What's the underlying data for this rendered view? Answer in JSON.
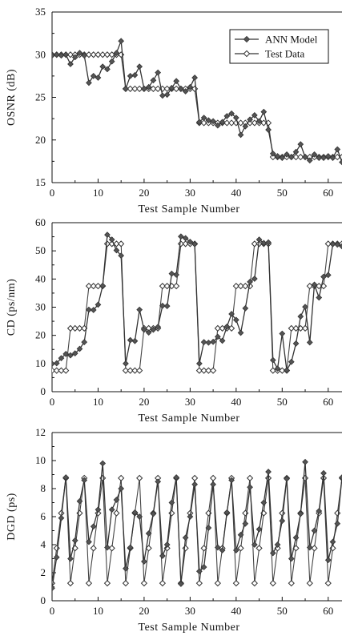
{
  "chart_data": [
    {
      "type": "line",
      "xlabel": "Test Sample Number",
      "ylabel": "OSNR (dB)",
      "xlim": [
        0,
        63
      ],
      "ylim": [
        15,
        35
      ],
      "xticks": [
        0,
        10,
        20,
        30,
        40,
        50,
        60
      ],
      "yticks": [
        15,
        20,
        25,
        30,
        35
      ],
      "legend": {
        "placement": "top-right",
        "entries": [
          "ANN Model",
          "Test Data"
        ]
      },
      "series": [
        {
          "name": "ANN Model",
          "marker": "diamond-filled",
          "x": [
            0,
            1,
            2,
            3,
            4,
            5,
            6,
            7,
            8,
            9,
            10,
            11,
            12,
            13,
            14,
            15,
            16,
            17,
            18,
            19,
            20,
            21,
            22,
            23,
            24,
            25,
            26,
            27,
            28,
            29,
            30,
            31,
            32,
            33,
            34,
            35,
            36,
            37,
            38,
            39,
            40,
            41,
            42,
            43,
            44,
            45,
            46,
            47,
            48,
            49,
            50,
            51,
            52,
            53,
            54,
            55,
            56,
            57,
            58,
            59,
            60,
            61,
            62,
            63
          ],
          "values": [
            29.9,
            30.0,
            29.9,
            30.0,
            28.9,
            29.7,
            30.2,
            29.9,
            26.7,
            27.5,
            27.3,
            28.6,
            28.3,
            29.2,
            30.2,
            31.6,
            26.0,
            27.5,
            27.6,
            28.6,
            26.0,
            26.2,
            27.0,
            27.9,
            25.2,
            25.3,
            26.1,
            26.9,
            26.0,
            25.7,
            26.2,
            27.3,
            22.1,
            22.6,
            22.3,
            22.2,
            21.7,
            22.1,
            22.8,
            23.1,
            22.6,
            20.6,
            21.6,
            22.4,
            22.9,
            22.2,
            23.3,
            21.2,
            18.4,
            18.1,
            17.9,
            18.3,
            18.0,
            18.6,
            19.5,
            18.0,
            17.6,
            18.3,
            17.9,
            17.9,
            18.1,
            17.9,
            18.9,
            17.4
          ]
        },
        {
          "name": "Test Data",
          "marker": "diamond-open",
          "x": [
            0,
            1,
            2,
            3,
            4,
            5,
            6,
            7,
            8,
            9,
            10,
            11,
            12,
            13,
            14,
            15,
            16,
            17,
            18,
            19,
            20,
            21,
            22,
            23,
            24,
            25,
            26,
            27,
            28,
            29,
            30,
            31,
            32,
            33,
            34,
            35,
            36,
            37,
            38,
            39,
            40,
            41,
            42,
            43,
            44,
            45,
            46,
            47,
            48,
            49,
            50,
            51,
            52,
            53,
            54,
            55,
            56,
            57,
            58,
            59,
            60,
            61,
            62,
            63
          ],
          "values": [
            30,
            30,
            30,
            30,
            30,
            30,
            30,
            30,
            30,
            30,
            30,
            30,
            30,
            30,
            30,
            30,
            26,
            26,
            26,
            26,
            26,
            26,
            26,
            26,
            26,
            26,
            26,
            26,
            26,
            26,
            26,
            26,
            22,
            22,
            22,
            22,
            22,
            22,
            22,
            22,
            22,
            22,
            22,
            22,
            22,
            22,
            22,
            22,
            18,
            18,
            18,
            18,
            18,
            18,
            18,
            18,
            18,
            18,
            18,
            18,
            18,
            18,
            18,
            18
          ]
        }
      ]
    },
    {
      "type": "line",
      "xlabel": "Test Sample Number",
      "ylabel": "CD (ps/nm)",
      "xlim": [
        0,
        63
      ],
      "ylim": [
        0,
        60
      ],
      "xticks": [
        0,
        10,
        20,
        30,
        40,
        50,
        60
      ],
      "yticks": [
        0,
        10,
        20,
        30,
        40,
        50,
        60
      ],
      "series": [
        {
          "name": "ANN Model",
          "marker": "diamond-filled",
          "x": [
            0,
            1,
            2,
            3,
            4,
            5,
            6,
            7,
            8,
            9,
            10,
            11,
            12,
            13,
            14,
            15,
            16,
            17,
            18,
            19,
            20,
            21,
            22,
            23,
            24,
            25,
            26,
            27,
            28,
            29,
            30,
            31,
            32,
            33,
            34,
            35,
            36,
            37,
            38,
            39,
            40,
            41,
            42,
            43,
            44,
            45,
            46,
            47,
            48,
            49,
            50,
            51,
            52,
            53,
            54,
            55,
            56,
            57,
            58,
            59,
            60,
            61,
            62,
            63
          ],
          "values": [
            9.9,
            10.1,
            11.9,
            13.4,
            12.9,
            13.6,
            15.2,
            17.6,
            29.1,
            29.0,
            30.9,
            37.6,
            55.7,
            54.0,
            50.2,
            48.3,
            10.0,
            18.3,
            18.0,
            29.1,
            22.0,
            21.0,
            22.0,
            23.0,
            30.5,
            30.4,
            41.9,
            41.5,
            55.1,
            54.5,
            53.2,
            52.4,
            10.0,
            17.6,
            17.4,
            17.7,
            19.5,
            18.1,
            23.1,
            27.6,
            25.5,
            20.9,
            29.6,
            39.0,
            40.1,
            54.0,
            52.8,
            53.0,
            11.2,
            8.2,
            20.6,
            7.6,
            10.6,
            17.1,
            26.7,
            30.1,
            17.5,
            38.0,
            33.4,
            40.8,
            41.4,
            52.4,
            52.2,
            51.6
          ]
        },
        {
          "name": "Test Data",
          "marker": "diamond-open",
          "x": [
            0,
            1,
            2,
            3,
            4,
            5,
            6,
            7,
            8,
            9,
            10,
            11,
            12,
            13,
            14,
            15,
            16,
            17,
            18,
            19,
            20,
            21,
            22,
            23,
            24,
            25,
            26,
            27,
            28,
            29,
            30,
            31,
            32,
            33,
            34,
            35,
            36,
            37,
            38,
            39,
            40,
            41,
            42,
            43,
            44,
            45,
            46,
            47,
            48,
            49,
            50,
            51,
            52,
            53,
            54,
            55,
            56,
            57,
            58,
            59,
            60,
            61,
            62,
            63
          ],
          "values": [
            7.5,
            7.5,
            7.5,
            7.5,
            22.5,
            22.5,
            22.5,
            22.5,
            37.5,
            37.5,
            37.5,
            37.5,
            52.5,
            52.5,
            52.5,
            52.5,
            7.5,
            7.5,
            7.5,
            7.5,
            22.5,
            22.5,
            22.5,
            22.5,
            37.5,
            37.5,
            37.5,
            37.5,
            52.5,
            52.5,
            52.5,
            52.5,
            7.5,
            7.5,
            7.5,
            7.5,
            22.5,
            22.5,
            22.5,
            22.5,
            37.5,
            37.5,
            37.5,
            37.5,
            52.5,
            52.5,
            52.5,
            52.5,
            7.5,
            7.5,
            7.5,
            7.5,
            22.5,
            22.5,
            22.5,
            22.5,
            37.5,
            37.5,
            37.5,
            37.5,
            52.5,
            52.5,
            52.5,
            52.5
          ]
        }
      ]
    },
    {
      "type": "line",
      "xlabel": "Test Sample Number",
      "ylabel": "DGD (ps)",
      "xlim": [
        0,
        63
      ],
      "ylim": [
        0,
        12
      ],
      "xticks": [
        0,
        10,
        20,
        30,
        40,
        50,
        60
      ],
      "yticks": [
        0,
        2,
        4,
        6,
        8,
        10,
        12
      ],
      "series": [
        {
          "name": "ANN Model",
          "marker": "diamond-filled",
          "x": [
            0,
            1,
            2,
            3,
            4,
            5,
            6,
            7,
            8,
            9,
            10,
            11,
            12,
            13,
            14,
            15,
            16,
            17,
            18,
            19,
            20,
            21,
            22,
            23,
            24,
            25,
            26,
            27,
            28,
            29,
            30,
            31,
            32,
            33,
            34,
            35,
            36,
            37,
            38,
            39,
            40,
            41,
            42,
            43,
            44,
            45,
            46,
            47,
            48,
            49,
            50,
            51,
            52,
            53,
            54,
            55,
            56,
            57,
            58,
            59,
            60,
            61,
            62,
            63
          ],
          "values": [
            0.9,
            3.1,
            5.9,
            8.8,
            3.0,
            4.3,
            7.1,
            8.6,
            4.2,
            5.3,
            6.5,
            9.8,
            3.8,
            6.5,
            7.2,
            8.0,
            2.3,
            3.8,
            6.3,
            6.0,
            2.8,
            4.8,
            6.2,
            8.5,
            3.2,
            4.0,
            7.0,
            8.8,
            1.2,
            4.5,
            6.0,
            8.3,
            2.1,
            2.4,
            5.2,
            8.3,
            3.8,
            3.6,
            6.3,
            8.6,
            3.6,
            4.7,
            5.5,
            8.1,
            4.0,
            5.1,
            7.0,
            9.2,
            3.4,
            4.0,
            5.7,
            8.7,
            3.0,
            4.5,
            6.2,
            9.9,
            3.8,
            5.0,
            6.4,
            9.1,
            2.9,
            4.2,
            5.5,
            8.8
          ]
        },
        {
          "name": "Test Data",
          "marker": "diamond-open",
          "x": [
            0,
            1,
            2,
            3,
            4,
            5,
            6,
            7,
            8,
            9,
            10,
            11,
            12,
            13,
            14,
            15,
            16,
            17,
            18,
            19,
            20,
            21,
            22,
            23,
            24,
            25,
            26,
            27,
            28,
            29,
            30,
            31,
            32,
            33,
            34,
            35,
            36,
            37,
            38,
            39,
            40,
            41,
            42,
            43,
            44,
            45,
            46,
            47,
            48,
            49,
            50,
            51,
            52,
            53,
            54,
            55,
            56,
            57,
            58,
            59,
            60,
            61,
            62,
            63
          ],
          "values": [
            1.25,
            3.75,
            6.25,
            8.75,
            1.25,
            3.75,
            6.25,
            8.75,
            1.25,
            3.75,
            6.25,
            8.75,
            1.25,
            3.75,
            6.25,
            8.75,
            1.25,
            3.75,
            6.25,
            8.75,
            1.25,
            3.75,
            6.25,
            8.75,
            1.25,
            3.75,
            6.25,
            8.75,
            1.25,
            3.75,
            6.25,
            8.75,
            1.25,
            3.75,
            6.25,
            8.75,
            1.25,
            3.75,
            6.25,
            8.75,
            1.25,
            3.75,
            6.25,
            8.75,
            1.25,
            3.75,
            6.25,
            8.75,
            1.25,
            3.75,
            6.25,
            8.75,
            1.25,
            3.75,
            6.25,
            8.75,
            1.25,
            3.75,
            6.25,
            8.75,
            1.25,
            3.75,
            6.25,
            8.75
          ]
        }
      ]
    }
  ]
}
